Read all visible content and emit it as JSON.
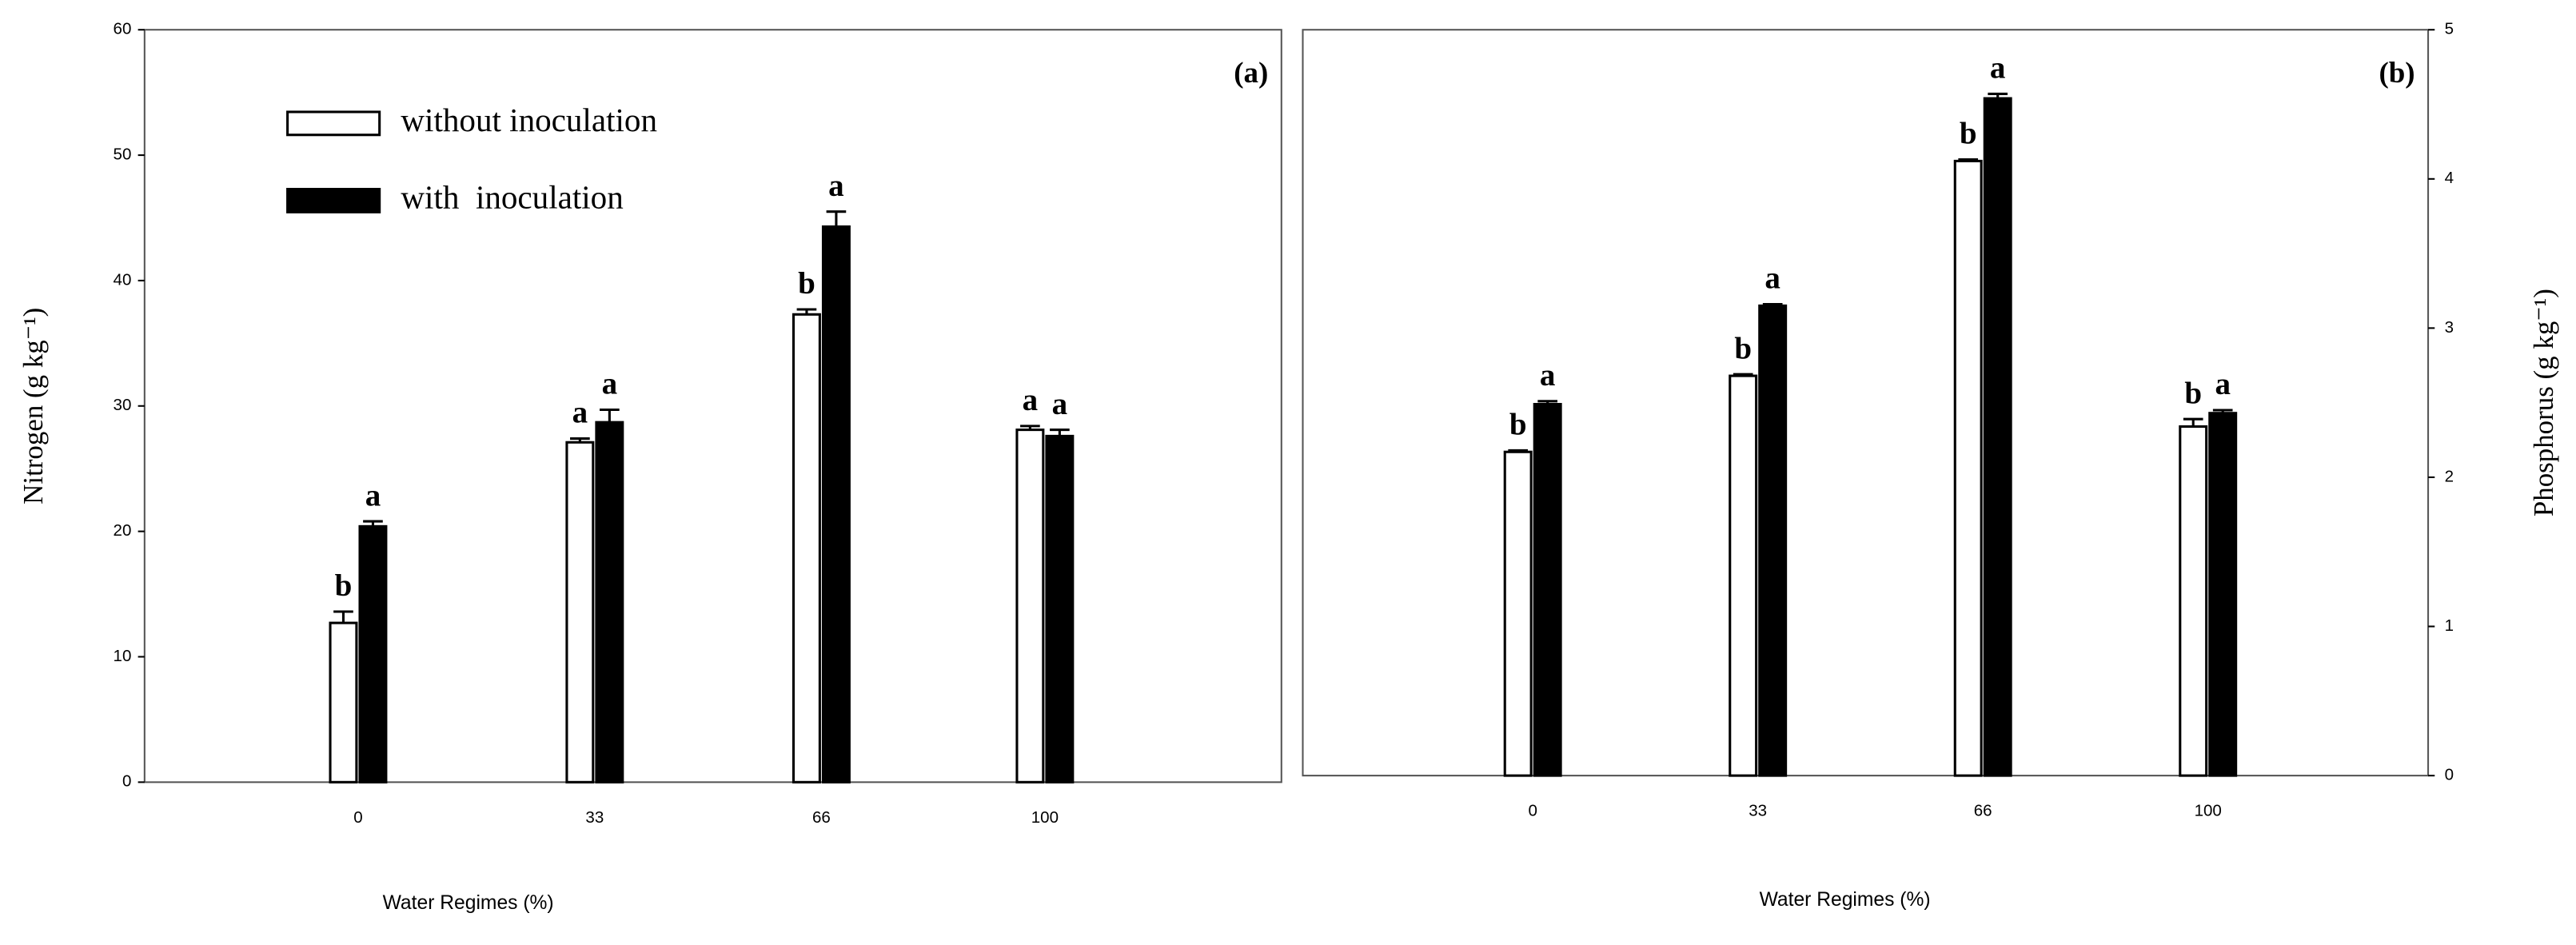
{
  "chart_data": [
    {
      "type": "bar",
      "panel_label": "(a)",
      "xlabel": "Water Regimes (%)",
      "ylabel": "Nitrogen (g kg⁻¹)",
      "y_axis_side": "left",
      "categories": [
        "0",
        "33",
        "66",
        "100"
      ],
      "series": [
        {
          "name": "without inoculation",
          "color": "#ffffff",
          "values": [
            12.7,
            27.1,
            37.3,
            28.1
          ],
          "errors": [
            0.9,
            0.3,
            0.4,
            0.3
          ],
          "letters": [
            "b",
            "a",
            "b",
            "a"
          ]
        },
        {
          "name": "with  inoculation",
          "color": "#000000",
          "values": [
            20.4,
            28.7,
            44.3,
            27.6
          ],
          "errors": [
            0.4,
            1.0,
            1.2,
            0.5
          ],
          "letters": [
            "a",
            "a",
            "a",
            "a"
          ]
        }
      ],
      "ylim": [
        0,
        60
      ],
      "yticks": [
        0,
        10,
        20,
        30,
        40,
        50,
        60
      ],
      "legend": "upper left"
    },
    {
      "type": "bar",
      "panel_label": "(b)",
      "xlabel": "Water Regimes (%)",
      "ylabel": "Phosphorus (g kg⁻¹)",
      "y_axis_side": "right",
      "categories": [
        "0",
        "33",
        "66",
        "100"
      ],
      "series": [
        {
          "name": "without inoculation",
          "color": "#ffffff",
          "values": [
            2.17,
            2.68,
            4.12,
            2.34
          ],
          "errors": [
            0.01,
            0.01,
            0.01,
            0.05
          ],
          "letters": [
            "b",
            "b",
            "b",
            "b"
          ]
        },
        {
          "name": "with  inoculation",
          "color": "#000000",
          "values": [
            2.49,
            3.15,
            4.54,
            2.43
          ],
          "errors": [
            0.02,
            0.01,
            0.03,
            0.02
          ],
          "letters": [
            "a",
            "a",
            "a",
            "a"
          ]
        }
      ],
      "ylim": [
        0,
        5
      ],
      "yticks": [
        0,
        1,
        2,
        3,
        4,
        5
      ],
      "legend": "none"
    }
  ]
}
